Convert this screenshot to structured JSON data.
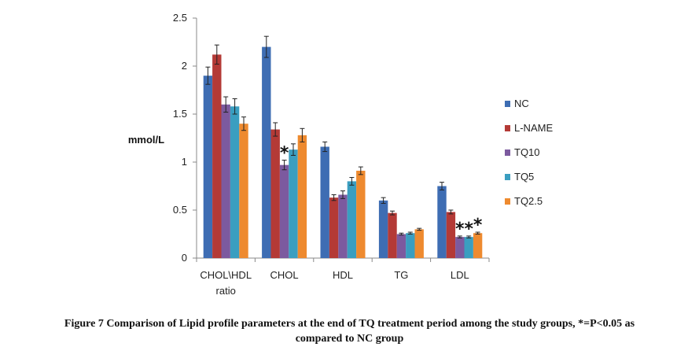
{
  "chart_data": {
    "type": "bar",
    "categories": [
      "CHOL\\HDL\nratio",
      "CHOL",
      "HDL",
      "TG",
      "LDL"
    ],
    "series": [
      {
        "name": "NC",
        "color": "#3e6db3",
        "values": [
          1.9,
          2.2,
          1.16,
          0.6,
          0.75
        ],
        "errors": [
          0.09,
          0.11,
          0.05,
          0.03,
          0.04
        ]
      },
      {
        "name": "L-NAME",
        "color": "#b43a36",
        "values": [
          2.12,
          1.34,
          0.63,
          0.47,
          0.48
        ],
        "errors": [
          0.1,
          0.07,
          0.03,
          0.02,
          0.02
        ]
      },
      {
        "name": "TQ10",
        "color": "#7c5a9f",
        "values": [
          1.6,
          0.97,
          0.66,
          0.25,
          0.22
        ],
        "errors": [
          0.08,
          0.05,
          0.04,
          0.01,
          0.01
        ]
      },
      {
        "name": "TQ5",
        "color": "#3a9ec0",
        "values": [
          1.58,
          1.13,
          0.8,
          0.26,
          0.22
        ],
        "errors": [
          0.08,
          0.06,
          0.04,
          0.01,
          0.01
        ]
      },
      {
        "name": "TQ2.5",
        "color": "#ee8a2f",
        "values": [
          1.4,
          1.28,
          0.91,
          0.3,
          0.26
        ],
        "errors": [
          0.07,
          0.07,
          0.04,
          0.01,
          0.01
        ]
      }
    ],
    "ylabel": "mmol/L",
    "ylim": [
      0,
      2.5
    ],
    "yticks": [
      "0",
      "0.5",
      "1",
      "1.5",
      "2",
      "2.5"
    ],
    "legend": "right",
    "grid": false,
    "annotations": [
      {
        "text": "*",
        "category": 1,
        "series": 2
      },
      {
        "text": "*",
        "category": 4,
        "series": 2
      },
      {
        "text": "*",
        "category": 4,
        "series": 3
      },
      {
        "text": "*",
        "category": 4,
        "series": 4
      }
    ]
  },
  "caption": {
    "line1": "Figure 7 Comparison of Lipid profile parameters at the end of TQ treatment period among the study groups, *=P<0.05 as",
    "line2": "compared to NC group"
  }
}
